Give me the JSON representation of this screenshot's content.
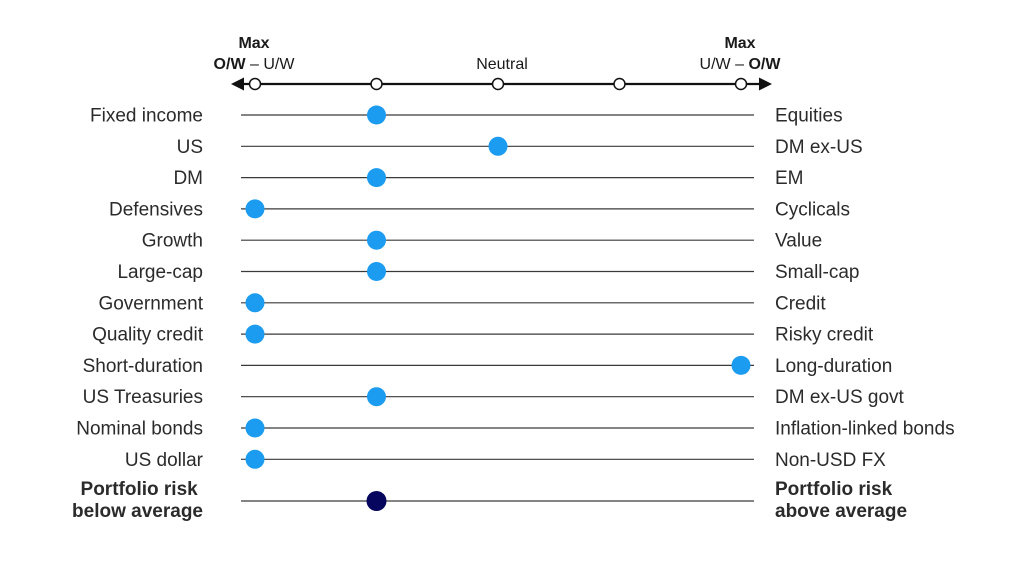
{
  "chart_data": {
    "type": "scatter",
    "scale": {
      "left_header": {
        "max": "Max",
        "sub_bold": "O/W",
        "sub_rest": " – U/W"
      },
      "neutral": "Neutral",
      "right_header": {
        "max": "Max",
        "sub_rest": "U/W – ",
        "sub_bold": "O/W"
      },
      "positions": [
        -2,
        -1,
        0,
        1,
        2
      ]
    },
    "rows": [
      {
        "left": "Fixed income",
        "right": "Equities",
        "value": -1
      },
      {
        "left": "US",
        "right": "DM ex-US",
        "value": 0
      },
      {
        "left": "DM",
        "right": "EM",
        "value": -1
      },
      {
        "left": "Defensives",
        "right": "Cyclicals",
        "value": -2
      },
      {
        "left": "Growth",
        "right": "Value",
        "value": -1
      },
      {
        "left": "Large-cap",
        "right": "Small-cap",
        "value": -1
      },
      {
        "left": "Government",
        "right": "Credit",
        "value": -2
      },
      {
        "left": "Quality credit",
        "right": "Risky credit",
        "value": -2
      },
      {
        "left": "Short-duration",
        "right": "Long-duration",
        "value": 2
      },
      {
        "left": "US Treasuries",
        "right": "DM ex-US govt",
        "value": -1
      },
      {
        "left": "Nominal bonds",
        "right": "Inflation-linked bonds",
        "value": -2
      },
      {
        "left": "US dollar",
        "right": "Non-USD FX",
        "value": -2
      }
    ],
    "summary": {
      "left": [
        "Portfolio risk",
        "below average"
      ],
      "right": [
        "Portfolio risk",
        "above average"
      ],
      "value": -1
    },
    "colors": {
      "dot": "#1b9cf0",
      "summary_dot": "#06065e",
      "line": "#3a3a3a",
      "axis": "#111111"
    }
  }
}
